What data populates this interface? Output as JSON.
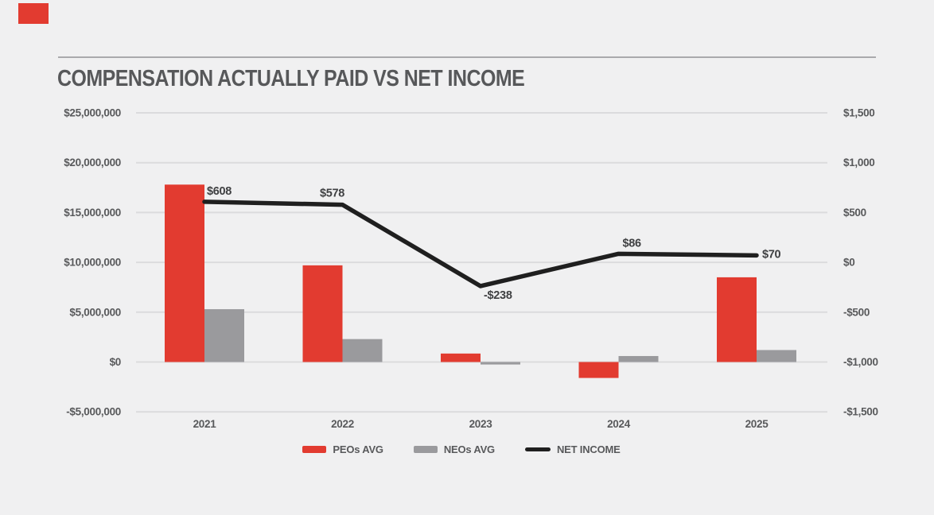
{
  "header": {
    "title": "COMPENSATION ACTUALLY PAID VS NET INCOME"
  },
  "colors": {
    "background": "#f0f0f1",
    "peo_red": "#e23b30",
    "neo_gray": "#9a9a9d",
    "net_income_black": "#1f1f1f",
    "gridline": "#dbdbdd",
    "axis_text": "#58595b",
    "point_label_text": "#3f4042",
    "header_rule": "#a9a9ac",
    "brand_accent": "#e23b30"
  },
  "chart_data": {
    "type": "bar",
    "subtype": "grouped-bar-with-line-overlay",
    "title": "COMPENSATION ACTUALLY PAID VS NET INCOME",
    "categories": [
      "2021",
      "2022",
      "2023",
      "2024",
      "2025"
    ],
    "series": [
      {
        "name": "PEOs AVG",
        "type": "bar",
        "axis": "left",
        "color": "#e23b30",
        "values": [
          17800000,
          9700000,
          850000,
          -1600000,
          8500000
        ]
      },
      {
        "name": "NEOs AVG",
        "type": "bar",
        "axis": "left",
        "color": "#9a9a9d",
        "values": [
          5300000,
          2300000,
          -250000,
          600000,
          1200000
        ]
      },
      {
        "name": "NET INCOME",
        "type": "line",
        "axis": "right",
        "color": "#1f1f1f",
        "values": [
          608,
          578,
          -238,
          86,
          70
        ],
        "point_labels": [
          "$608",
          "$578",
          "-$238",
          "$86",
          "$70"
        ]
      }
    ],
    "left_axis": {
      "min": -5000000,
      "max": 25000000,
      "step": 5000000,
      "tick_labels": [
        "$25,000,000",
        "$20,000,000",
        "$15,000,000",
        "$10,000,000",
        "$5,000,000",
        "$0",
        "-$5,000,000"
      ]
    },
    "right_axis": {
      "min": -1500,
      "max": 1500,
      "step": 500,
      "tick_labels": [
        "$1,500",
        "$1,000",
        "$500",
        "$0",
        "-$500",
        "-$1,000",
        "-$1,500"
      ]
    },
    "grid": true,
    "legend_position": "bottom-center"
  },
  "legend": {
    "items": [
      {
        "label": "PEOs AVG",
        "swatch": "bar",
        "color": "#e23b30"
      },
      {
        "label": "NEOs AVG",
        "swatch": "bar",
        "color": "#9a9a9d"
      },
      {
        "label": "NET INCOME",
        "swatch": "line",
        "color": "#1f1f1f"
      }
    ]
  }
}
